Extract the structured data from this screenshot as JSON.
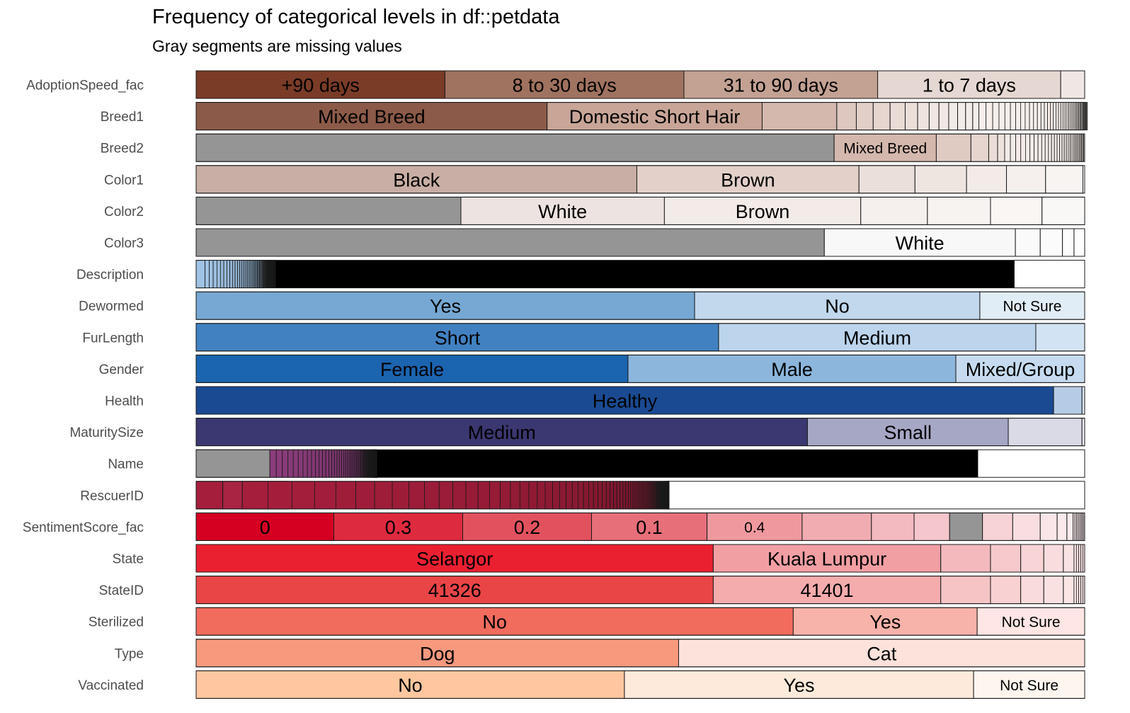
{
  "chart_data": {
    "type": "bar",
    "subtype": "stacked-proportion (inspectdf categorical levels)",
    "title": "Frequency of categorical levels in df::petdata",
    "subtitle": "Gray segments are missing values",
    "missing_color": "#959595",
    "rows": [
      {
        "name": "AdoptionSpeed_fac",
        "segments": [
          {
            "label": "+90 days",
            "prop": 0.28,
            "color": "#7a3b27"
          },
          {
            "label": "8 to 30 days",
            "prop": 0.269,
            "color": "#a07260"
          },
          {
            "label": "31 to 90 days",
            "prop": 0.218,
            "color": "#c3a193"
          },
          {
            "label": "1 to 7 days",
            "prop": 0.206,
            "color": "#e5d7d1"
          },
          {
            "label": "",
            "prop": 0.027,
            "color": "#f0e7e4"
          }
        ]
      },
      {
        "name": "Breed1",
        "tail_count": 40,
        "tail_prop": 0.122,
        "tail_color": "#f6eeeb",
        "segments": [
          {
            "label": "Mixed Breed",
            "prop": 0.395,
            "color": "#8c5a48"
          },
          {
            "label": "Domestic Short Hair",
            "prop": 0.242,
            "color": "#c8a597"
          },
          {
            "label": "",
            "prop": 0.084,
            "color": "#d4b8ad"
          },
          {
            "label": "",
            "prop": 0.022,
            "color": "#ddc7bf"
          },
          {
            "label": "",
            "prop": 0.019,
            "color": "#e2cfc8"
          },
          {
            "label": "",
            "prop": 0.019,
            "color": "#e6d6cf"
          },
          {
            "label": "",
            "prop": 0.017,
            "color": "#e9dbd5"
          },
          {
            "label": "",
            "prop": 0.014,
            "color": "#ecdfda"
          },
          {
            "label": "",
            "prop": 0.013,
            "color": "#eee3de"
          },
          {
            "label": "",
            "prop": 0.011,
            "color": "#f0e6e2"
          },
          {
            "label": "",
            "prop": 0.011,
            "color": "#f1e8e5"
          },
          {
            "label": "",
            "prop": 0.01,
            "color": "#f2eae7"
          },
          {
            "label": "",
            "prop": 0.009,
            "color": "#f3ebe8"
          },
          {
            "label": "",
            "prop": 0.008,
            "color": "#f4ece9"
          },
          {
            "label": "",
            "prop": 0.007,
            "color": "#f5edea"
          }
        ]
      },
      {
        "name": "Breed2",
        "tail_count": 30,
        "tail_prop": 0.09,
        "tail_color": "#f4ebe8",
        "segments": [
          {
            "label": "",
            "prop": 0.718,
            "color": "#959595",
            "missing": true
          },
          {
            "label": "Mixed Breed",
            "prop": 0.115,
            "color": "#d4b8ad"
          },
          {
            "label": "",
            "prop": 0.039,
            "color": "#e0cbc3"
          },
          {
            "label": "",
            "prop": 0.02,
            "color": "#e6d5cf"
          },
          {
            "label": "",
            "prop": 0.01,
            "color": "#ebdcd7"
          },
          {
            "label": "",
            "prop": 0.008,
            "color": "#eee2dd"
          }
        ]
      },
      {
        "name": "Color1",
        "segments": [
          {
            "label": "Black",
            "prop": 0.496,
            "color": "#c8aea4"
          },
          {
            "label": "Brown",
            "prop": 0.25,
            "color": "#e2d0c9"
          },
          {
            "label": "",
            "prop": 0.063,
            "color": "#eadfda"
          },
          {
            "label": "",
            "prop": 0.058,
            "color": "#eee5e1"
          },
          {
            "label": "",
            "prop": 0.045,
            "color": "#f2ebe8"
          },
          {
            "label": "",
            "prop": 0.044,
            "color": "#f5f0ee"
          },
          {
            "label": "",
            "prop": 0.042,
            "color": "#f8f4f2"
          }
        ]
      },
      {
        "name": "Color2",
        "segments": [
          {
            "label": "",
            "prop": 0.298,
            "color": "#959595",
            "missing": true
          },
          {
            "label": "White",
            "prop": 0.229,
            "color": "#ede3e0"
          },
          {
            "label": "Brown",
            "prop": 0.221,
            "color": "#f2ebe8"
          },
          {
            "label": "",
            "prop": 0.075,
            "color": "#f5f0ee"
          },
          {
            "label": "",
            "prop": 0.071,
            "color": "#f7f3f1"
          },
          {
            "label": "",
            "prop": 0.058,
            "color": "#f9f6f4"
          },
          {
            "label": "",
            "prop": 0.048,
            "color": "#faf8f7"
          }
        ]
      },
      {
        "name": "Color3",
        "segments": [
          {
            "label": "",
            "prop": 0.707,
            "color": "#959595",
            "missing": true
          },
          {
            "label": "White",
            "prop": 0.215,
            "color": "#f8f8f9"
          },
          {
            "label": "",
            "prop": 0.028,
            "color": "#fafafb"
          },
          {
            "label": "",
            "prop": 0.025,
            "color": "#fbfbfc"
          },
          {
            "label": "",
            "prop": 0.013,
            "color": "#fcfcfc"
          },
          {
            "label": "",
            "prop": 0.012,
            "color": "#fdfdfd"
          }
        ]
      },
      {
        "name": "Description",
        "tail_count": 90,
        "tail_prop": 0.079,
        "tail_color": "#000000",
        "tail_fade": "#9fc3e4",
        "tail_fill": "#000000",
        "segments": [
          {
            "label": "",
            "prop": 0.01,
            "color": "#9fc3e4"
          },
          {
            "label": "",
            "prop": 0.911,
            "color": "#000000",
            "fill_only": true
          }
        ]
      },
      {
        "name": "Dewormed",
        "segments": [
          {
            "label": "Yes",
            "prop": 0.561,
            "color": "#76a8d3"
          },
          {
            "label": "No",
            "prop": 0.321,
            "color": "#c1d8ed"
          },
          {
            "label": "Not Sure",
            "prop": 0.118,
            "color": "#e0ecf6"
          }
        ]
      },
      {
        "name": "FurLength",
        "segments": [
          {
            "label": "Short",
            "prop": 0.588,
            "color": "#4181c1"
          },
          {
            "label": "Medium",
            "prop": 0.357,
            "color": "#bcd4ec"
          },
          {
            "label": "",
            "prop": 0.055,
            "color": "#d2e3f3"
          }
        ]
      },
      {
        "name": "Gender",
        "segments": [
          {
            "label": "Female",
            "prop": 0.486,
            "color": "#1b64b0"
          },
          {
            "label": "Male",
            "prop": 0.369,
            "color": "#8cb6dc"
          },
          {
            "label": "Mixed/Group",
            "prop": 0.145,
            "color": "#c6dbef"
          }
        ]
      },
      {
        "name": "Health",
        "segments": [
          {
            "label": "Healthy",
            "prop": 0.965,
            "color": "#1a4a92"
          },
          {
            "label": "",
            "prop": 0.032,
            "color": "#b6cce6"
          },
          {
            "label": "",
            "prop": 0.003,
            "color": "#dde8f3"
          }
        ]
      },
      {
        "name": "MaturitySize",
        "segments": [
          {
            "label": "Medium",
            "prop": 0.688,
            "color": "#3b3770"
          },
          {
            "label": "Small",
            "prop": 0.226,
            "color": "#a6a6c5"
          },
          {
            "label": "",
            "prop": 0.083,
            "color": "#dadae7"
          },
          {
            "label": "",
            "prop": 0.003,
            "color": "#ececf3"
          }
        ]
      },
      {
        "name": "Name",
        "tail_count": 110,
        "tail_prop": 0.12,
        "tail_color": "#000000",
        "tail_fade": "#8c3c7c",
        "segments": [
          {
            "label": "",
            "prop": 0.083,
            "color": "#959595",
            "missing": true
          },
          {
            "label": "",
            "prop": 0.797,
            "color": "#000000",
            "fill_only": true
          }
        ]
      },
      {
        "name": "RescuerID",
        "tail_count": 140,
        "tail_prop": 0.48,
        "tail_color": "#000000",
        "tail_fade": "#a51e3c",
        "segments": [
          {
            "label": "",
            "prop": 0.03,
            "color": "#a51e3c"
          },
          {
            "label": "",
            "prop": 0.022,
            "color": "#a82442"
          },
          {
            "label": "",
            "prop": 0.017,
            "color": "#ab2a47"
          },
          {
            "label": "",
            "prop": 0.014,
            "color": "#ae304c"
          },
          {
            "label": "",
            "prop": 0.011,
            "color": "#b13651"
          },
          {
            "label": "",
            "prop": 0.01,
            "color": "#b33b55"
          },
          {
            "label": "",
            "prop": 0.416,
            "color": "#000000",
            "fill_only": true
          }
        ]
      },
      {
        "name": "SentimentScore_fac",
        "tail_count": 8,
        "tail_prop": 0.013,
        "tail_color": "#fbeaed",
        "segments": [
          {
            "label": "0",
            "prop": 0.155,
            "color": "#d50021"
          },
          {
            "label": "0.3",
            "prop": 0.145,
            "color": "#de2a3f"
          },
          {
            "label": "0.2",
            "prop": 0.145,
            "color": "#e2525e"
          },
          {
            "label": "0.1",
            "prop": 0.13,
            "color": "#e76f7a"
          },
          {
            "label": "0.4",
            "prop": 0.107,
            "color": "#ef999f"
          },
          {
            "label": "",
            "prop": 0.078,
            "color": "#f1acb2"
          },
          {
            "label": "",
            "prop": 0.048,
            "color": "#f3bac0"
          },
          {
            "label": "",
            "prop": 0.04,
            "color": "#f5c6cb"
          },
          {
            "label": "",
            "prop": 0.037,
            "color": "#959595",
            "missing": true
          },
          {
            "label": "",
            "prop": 0.034,
            "color": "#f7d3d7"
          },
          {
            "label": "",
            "prop": 0.031,
            "color": "#f9dee1"
          },
          {
            "label": "",
            "prop": 0.019,
            "color": "#fae6e8"
          },
          {
            "label": "",
            "prop": 0.011,
            "color": "#fbe9eb"
          },
          {
            "label": "",
            "prop": 0.007,
            "color": "#fceced"
          }
        ]
      },
      {
        "name": "State",
        "tail_count": 5,
        "tail_prop": 0.012,
        "tail_color": "#fbe4e6",
        "segments": [
          {
            "label": "Selangor",
            "prop": 0.582,
            "color": "#ea2030"
          },
          {
            "label": "Kuala Lumpur",
            "prop": 0.256,
            "color": "#f29fa4"
          },
          {
            "label": "",
            "prop": 0.056,
            "color": "#f4b9bd"
          },
          {
            "label": "",
            "prop": 0.034,
            "color": "#f6c9cc"
          },
          {
            "label": "",
            "prop": 0.026,
            "color": "#f8d4d6"
          },
          {
            "label": "",
            "prop": 0.022,
            "color": "#f9dcde"
          },
          {
            "label": "",
            "prop": 0.012,
            "color": "#fae2e3"
          }
        ]
      },
      {
        "name": "StateID",
        "tail_count": 5,
        "tail_prop": 0.012,
        "tail_color": "#fce8e8",
        "segments": [
          {
            "label": "41326",
            "prop": 0.582,
            "color": "#ea4546"
          },
          {
            "label": "41401",
            "prop": 0.256,
            "color": "#f4acad"
          },
          {
            "label": "",
            "prop": 0.056,
            "color": "#f6c4c5"
          },
          {
            "label": "",
            "prop": 0.034,
            "color": "#f8d1d2"
          },
          {
            "label": "",
            "prop": 0.026,
            "color": "#f9dbdb"
          },
          {
            "label": "",
            "prop": 0.022,
            "color": "#fae1e1"
          },
          {
            "label": "",
            "prop": 0.012,
            "color": "#fbe5e5"
          }
        ]
      },
      {
        "name": "Sterilized",
        "segments": [
          {
            "label": "No",
            "prop": 0.672,
            "color": "#f26c5e"
          },
          {
            "label": "Yes",
            "prop": 0.207,
            "color": "#f7b2a9"
          },
          {
            "label": "Not Sure",
            "prop": 0.121,
            "color": "#fde6e3"
          }
        ]
      },
      {
        "name": "Type",
        "segments": [
          {
            "label": "Dog",
            "prop": 0.543,
            "color": "#f7997d"
          },
          {
            "label": "Cat",
            "prop": 0.457,
            "color": "#fde1db"
          }
        ]
      },
      {
        "name": "Vaccinated",
        "segments": [
          {
            "label": "No",
            "prop": 0.482,
            "color": "#fec79f"
          },
          {
            "label": "Yes",
            "prop": 0.393,
            "color": "#feeadb"
          },
          {
            "label": "Not Sure",
            "prop": 0.125,
            "color": "#fef5ef"
          }
        ]
      }
    ]
  }
}
